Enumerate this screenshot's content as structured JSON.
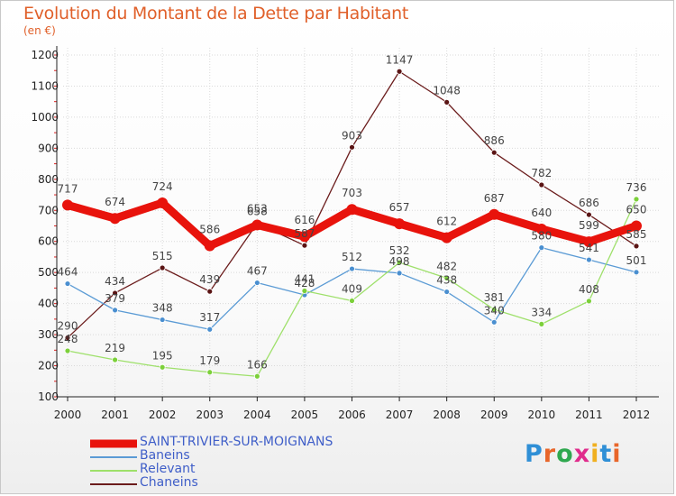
{
  "title": "Evolution du Montant de la Dette par Habitant",
  "subtitle": "(en €)",
  "brand": "Proxiti",
  "colors": {
    "grid": "#d9d9d9",
    "axis": "#222222",
    "tick_marks": "#e02020",
    "title": "#e0602a",
    "legend_text": "#3f5ec8"
  },
  "chart_data": {
    "type": "line",
    "xlabel": "",
    "ylabel": "",
    "ylim": [
      100,
      1200
    ],
    "yticks": [
      100,
      200,
      300,
      400,
      500,
      600,
      700,
      800,
      900,
      1000,
      1100,
      1200
    ],
    "x": [
      "2000",
      "2001",
      "2002",
      "2003",
      "2004",
      "2005",
      "2006",
      "2007",
      "2008",
      "2009",
      "2010",
      "2011",
      "2012"
    ],
    "series": [
      {
        "name": "Chaneins",
        "color": "#6b1c1c",
        "marker_fill": "#5a1414",
        "width": 1.3,
        "marker": 3,
        "values": [
          290,
          434,
          515,
          439,
          658,
          587,
          903,
          1147,
          1048,
          886,
          782,
          686,
          585
        ]
      },
      {
        "name": "Baneins",
        "color": "#5b9bd5",
        "marker_fill": "#4a8fd0",
        "width": 1.3,
        "marker": 3,
        "values": [
          464,
          379,
          348,
          317,
          467,
          428,
          512,
          498,
          438,
          340,
          580,
          541,
          501
        ]
      },
      {
        "name": "Relevant",
        "color": "#9ee06a",
        "marker_fill": "#7cd03a",
        "width": 1.3,
        "marker": 3,
        "values": [
          248,
          219,
          195,
          179,
          166,
          441,
          409,
          532,
          482,
          381,
          334,
          408,
          736
        ]
      },
      {
        "name": "SAINT-TRIVIER-SUR-MOIGNANS",
        "color": "#e8130c",
        "marker_fill": "#e8130c",
        "width": 9,
        "marker": 6,
        "values": [
          717,
          674,
          724,
          586,
          653,
          616,
          703,
          657,
          612,
          687,
          640,
          599,
          650
        ]
      }
    ],
    "legend": [
      "SAINT-TRIVIER-SUR-MOIGNANS",
      "Baneins",
      "Relevant",
      "Chaneins"
    ],
    "legend_position": "bottom-left"
  }
}
